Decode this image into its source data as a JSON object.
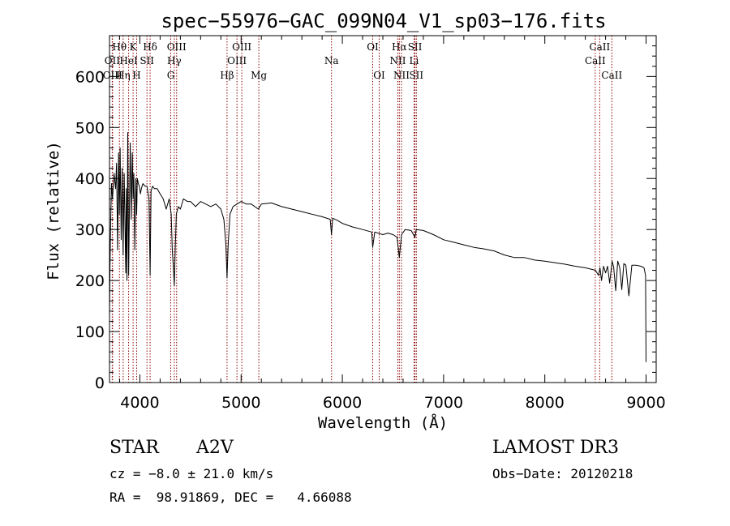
{
  "chart_data": {
    "type": "line",
    "title": "spec−55976−GAC_099N04_V1_sp03−176.fits",
    "xlabel": "Wavelength (Å)",
    "ylabel": "Flux (relative)",
    "xlim": [
      3700,
      9100
    ],
    "ylim": [
      0,
      680
    ],
    "xticks": [
      4000,
      5000,
      6000,
      7000,
      8000,
      9000
    ],
    "yticks": [
      0,
      100,
      200,
      300,
      400,
      500,
      600
    ],
    "grid": false,
    "line_color": "#000000",
    "marker_color": "#8b0000",
    "series": [
      {
        "name": "flux",
        "x": [
          3700,
          3705,
          3712,
          3720,
          3730,
          3745,
          3760,
          3770,
          3780,
          3790,
          3798,
          3805,
          3815,
          3825,
          3835,
          3845,
          3855,
          3860,
          3866,
          3872,
          3880,
          3889,
          3895,
          3905,
          3915,
          3925,
          3933,
          3940,
          3950,
          3960,
          3968,
          3975,
          3985,
          3995,
          4005,
          4015,
          4030,
          4050,
          4070,
          4090,
          4101,
          4110,
          4125,
          4145,
          4170,
          4200,
          4230,
          4260,
          4290,
          4310,
          4320,
          4330,
          4340,
          4350,
          4360,
          4380,
          4400,
          4430,
          4470,
          4500,
          4550,
          4600,
          4650,
          4700,
          4750,
          4800,
          4830,
          4850,
          4861,
          4872,
          4890,
          4920,
          4960,
          5000,
          5050,
          5100,
          5170,
          5200,
          5300,
          5400,
          5500,
          5600,
          5700,
          5800,
          5880,
          5893,
          5905,
          5950,
          6000,
          6100,
          6200,
          6290,
          6300,
          6320,
          6400,
          6450,
          6500,
          6540,
          6555,
          6563,
          6570,
          6585,
          6620,
          6680,
          6717,
          6730,
          6800,
          6900,
          7000,
          7100,
          7200,
          7300,
          7400,
          7500,
          7600,
          7700,
          7800,
          7900,
          8000,
          8100,
          8200,
          8300,
          8400,
          8500,
          8530,
          8545,
          8560,
          8580,
          8600,
          8620,
          8640,
          8665,
          8680,
          8700,
          8720,
          8740,
          8760,
          8780,
          8800,
          8830,
          8860,
          8900,
          8950,
          8980,
          8995,
          9000
        ],
        "values": [
          130,
          230,
          320,
          390,
          360,
          410,
          380,
          430,
          260,
          450,
          330,
          460,
          280,
          420,
          250,
          410,
          290,
          215,
          380,
          200,
          490,
          210,
          310,
          470,
          320,
          450,
          360,
          410,
          260,
          400,
          330,
          400,
          390,
          385,
          370,
          380,
          390,
          385,
          385,
          360,
          210,
          375,
          385,
          380,
          380,
          370,
          360,
          340,
          360,
          330,
          260,
          230,
          190,
          265,
          330,
          345,
          340,
          360,
          355,
          355,
          345,
          355,
          350,
          345,
          350,
          340,
          320,
          270,
          205,
          270,
          330,
          345,
          350,
          355,
          350,
          350,
          340,
          350,
          352,
          345,
          340,
          335,
          330,
          325,
          320,
          290,
          322,
          318,
          312,
          305,
          300,
          295,
          265,
          295,
          290,
          293,
          290,
          285,
          260,
          245,
          260,
          290,
          300,
          298,
          285,
          300,
          298,
          290,
          280,
          275,
          270,
          265,
          262,
          258,
          250,
          245,
          245,
          240,
          238,
          235,
          232,
          228,
          225,
          220,
          210,
          225,
          200,
          228,
          215,
          228,
          195,
          238,
          226,
          180,
          238,
          225,
          182,
          233,
          230,
          170,
          230,
          230,
          228,
          225,
          210,
          40
        ]
      }
    ],
    "line_markers": [
      {
        "name": "Hθ",
        "x": 3798,
        "row": 0
      },
      {
        "name": "OII",
        "x": 3727,
        "row": 1
      },
      {
        "name": "OIII",
        "x": 3730,
        "row": 2
      },
      {
        "name": "Hη",
        "x": 3835,
        "row": 2
      },
      {
        "name": "HeI",
        "x": 3889,
        "row": 1
      },
      {
        "name": "K",
        "x": 3933,
        "row": 0
      },
      {
        "name": "H",
        "x": 3968,
        "row": 2
      },
      {
        "name": "SII",
        "x": 4070,
        "row": 1
      },
      {
        "name": "Hδ",
        "x": 4101,
        "row": 0
      },
      {
        "name": "OIII",
        "x": 4363,
        "row": 0
      },
      {
        "name": "Hγ",
        "x": 4340,
        "row": 1
      },
      {
        "name": "G",
        "x": 4305,
        "row": 2
      },
      {
        "name": "Hβ",
        "x": 4861,
        "row": 2
      },
      {
        "name": "OIII",
        "x": 4959,
        "row": 1
      },
      {
        "name": "OIII",
        "x": 5007,
        "row": 0
      },
      {
        "name": "Mg",
        "x": 5175,
        "row": 2
      },
      {
        "name": "Na",
        "x": 5893,
        "row": 1
      },
      {
        "name": "OI",
        "x": 6300,
        "row": 0
      },
      {
        "name": "OI",
        "x": 6364,
        "row": 2
      },
      {
        "name": "Hα",
        "x": 6563,
        "row": 0
      },
      {
        "name": "NII",
        "x": 6548,
        "row": 1
      },
      {
        "name": "NII",
        "x": 6584,
        "row": 2
      },
      {
        "name": "SII",
        "x": 6717,
        "row": 0
      },
      {
        "name": "Li",
        "x": 6708,
        "row": 1
      },
      {
        "name": "SII",
        "x": 6731,
        "row": 2
      },
      {
        "name": "CaII",
        "x": 8542,
        "row": 0
      },
      {
        "name": "CaII",
        "x": 8498,
        "row": 1
      },
      {
        "name": "CaII",
        "x": 8662,
        "row": 2
      }
    ]
  },
  "info": {
    "object_class": "STAR",
    "subclass": "A2V",
    "survey": "LAMOST DR3",
    "cz": "cz = −8.0 ± 21.0 km/s",
    "obs_date": "Obs−Date: 20120218",
    "radec": "RA =  98.91869, DEC =   4.66088"
  }
}
